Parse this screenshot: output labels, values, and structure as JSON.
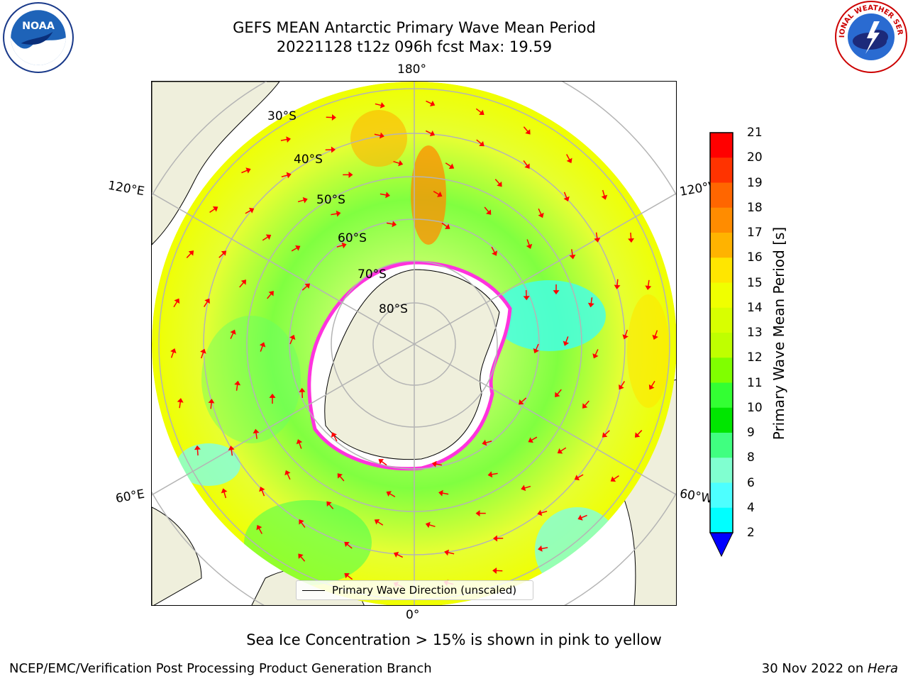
{
  "header": {
    "title_line1": "GEFS MEAN Antarctic Primary Wave Mean Period",
    "title_line2": "20221128 t12z 096h fcst   Max: 19.59"
  },
  "logos": {
    "left": {
      "icon": "noaa-logo-icon",
      "text": "NOAA"
    },
    "right": {
      "icon": "nws-logo-icon",
      "ring_text": "NATIONAL WEATHER SERVICE"
    }
  },
  "map": {
    "projection": "south polar stereographic",
    "lon_labels": {
      "top": "180°",
      "bottom": "0°",
      "upper_left": "120°E",
      "lower_left": "60°E",
      "upper_right": "120°W",
      "lower_right": "60°W"
    },
    "lat_labels": [
      "30°S",
      "40°S",
      "50°S",
      "60°S",
      "70°S",
      "80°S"
    ],
    "legend": {
      "label": "Primary Wave Direction (unscaled)"
    },
    "colors": {
      "land": "#efefdc",
      "ice": "#ffffff",
      "grid": "#b4b4b4",
      "arrow": "#ff0000",
      "sea_ice_edge": "#ff33dd"
    }
  },
  "colorbar": {
    "label": "Primary Wave Mean Period [s]",
    "ticks": [
      "21",
      "20",
      "19",
      "18",
      "17",
      "16",
      "15",
      "14",
      "13",
      "12",
      "11",
      "10",
      "9",
      "8",
      "6",
      "4",
      "2"
    ],
    "colors": [
      "#ff0000",
      "#ff3300",
      "#ff6600",
      "#ff8c00",
      "#ffb300",
      "#ffe600",
      "#f0ff00",
      "#d8ff00",
      "#bfff00",
      "#80ff00",
      "#33ff33",
      "#00e600",
      "#40ff80",
      "#80ffd0",
      "#4dffff",
      "#00ffff",
      "#00c8ff",
      "#0080ff"
    ],
    "extend_color": "#0000ff"
  },
  "subtitle": "Sea Ice Concentration > 15% is shown in pink to yellow",
  "footer": {
    "left": "NCEP/EMC/Verification Post Processing Product Generation Branch",
    "right_date": "30 Nov 2022 on ",
    "right_host": "Hera"
  }
}
